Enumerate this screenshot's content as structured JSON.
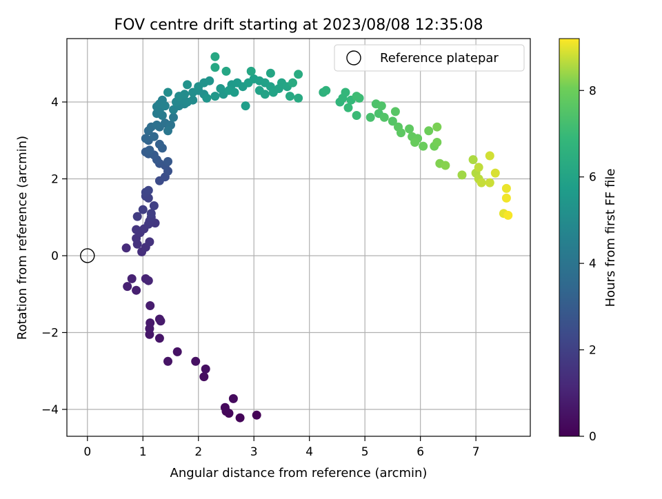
{
  "chart_data": {
    "type": "scatter",
    "title": "FOV centre drift starting at 2023/08/08 12:35:08",
    "xlabel": "Angular distance from reference (arcmin)",
    "ylabel": "Rotation from reference (arcmin)",
    "xlim": [
      -0.37,
      7.98
    ],
    "ylim": [
      -4.7,
      5.65
    ],
    "xticks": [
      0,
      1,
      2,
      3,
      4,
      5,
      6,
      7
    ],
    "xtick_labels": [
      "0",
      "1",
      "2",
      "3",
      "4",
      "5",
      "6",
      "7"
    ],
    "yticks": [
      -4,
      -2,
      0,
      2,
      4
    ],
    "ytick_labels": [
      "−4",
      "−2",
      "0",
      "2",
      "4"
    ],
    "grid": true,
    "colormap": "viridis",
    "legend": {
      "position": "top-right",
      "label": "Reference platepar"
    },
    "reference_point": {
      "x": 0,
      "y": 0
    },
    "colorbar": {
      "label": "Hours from first FF file",
      "range": [
        0,
        9.2
      ],
      "ticks": [
        0,
        2,
        4,
        6,
        8
      ],
      "tick_labels": [
        "0",
        "2",
        "4",
        "6",
        "8"
      ]
    },
    "points": [
      [
        3.05,
        -4.15,
        0.05
      ],
      [
        2.75,
        -4.22,
        0.12
      ],
      [
        2.55,
        -4.1,
        0.18
      ],
      [
        2.5,
        -4.05,
        0.2
      ],
      [
        2.48,
        -3.95,
        0.25
      ],
      [
        2.63,
        -3.72,
        0.3
      ],
      [
        2.1,
        -3.15,
        0.35
      ],
      [
        2.13,
        -2.95,
        0.4
      ],
      [
        1.95,
        -2.75,
        0.45
      ],
      [
        1.62,
        -2.5,
        0.5
      ],
      [
        1.45,
        -2.75,
        0.55
      ],
      [
        1.3,
        -2.15,
        0.6
      ],
      [
        1.12,
        -2.05,
        0.65
      ],
      [
        1.12,
        -1.9,
        0.7
      ],
      [
        1.13,
        -1.75,
        0.72
      ],
      [
        1.3,
        -1.65,
        0.75
      ],
      [
        1.32,
        -1.7,
        0.78
      ],
      [
        1.13,
        -1.3,
        0.82
      ],
      [
        0.88,
        -0.9,
        0.9
      ],
      [
        0.72,
        -0.8,
        0.95
      ],
      [
        0.8,
        -0.6,
        1.0
      ],
      [
        1.05,
        -0.6,
        1.05
      ],
      [
        1.1,
        -0.65,
        1.1
      ],
      [
        0.7,
        0.2,
        1.3
      ],
      [
        0.98,
        0.1,
        1.4
      ],
      [
        1.05,
        0.22,
        1.45
      ],
      [
        0.9,
        0.3,
        1.5
      ],
      [
        1.12,
        0.36,
        1.52
      ],
      [
        0.88,
        0.45,
        1.55
      ],
      [
        0.95,
        0.6,
        1.6
      ],
      [
        0.88,
        0.68,
        1.62
      ],
      [
        1.02,
        0.7,
        1.65
      ],
      [
        1.1,
        0.82,
        1.7
      ],
      [
        1.22,
        0.85,
        1.72
      ],
      [
        1.12,
        0.9,
        1.75
      ],
      [
        1.15,
        1.0,
        1.8
      ],
      [
        0.9,
        1.02,
        1.85
      ],
      [
        1.0,
        1.2,
        1.9
      ],
      [
        1.15,
        1.1,
        1.95
      ],
      [
        1.2,
        1.3,
        2.0
      ],
      [
        1.1,
        1.5,
        2.05
      ],
      [
        1.05,
        1.55,
        2.1
      ],
      [
        1.05,
        1.65,
        2.15
      ],
      [
        1.1,
        1.7,
        2.2
      ],
      [
        1.3,
        1.95,
        2.4
      ],
      [
        1.4,
        2.05,
        2.5
      ],
      [
        1.45,
        2.2,
        2.6
      ],
      [
        1.4,
        2.35,
        2.7
      ],
      [
        1.3,
        2.4,
        2.8
      ],
      [
        1.45,
        2.45,
        2.85
      ],
      [
        1.25,
        2.5,
        2.9
      ],
      [
        1.2,
        2.62,
        2.95
      ],
      [
        1.1,
        2.65,
        3.0
      ],
      [
        1.05,
        2.7,
        3.05
      ],
      [
        1.12,
        2.75,
        3.1
      ],
      [
        1.35,
        2.8,
        3.15
      ],
      [
        1.3,
        2.9,
        3.2
      ],
      [
        1.1,
        3.0,
        3.3
      ],
      [
        1.05,
        3.05,
        3.4
      ],
      [
        1.2,
        3.1,
        3.5
      ],
      [
        1.1,
        3.25,
        3.6
      ],
      [
        1.15,
        3.35,
        3.7
      ],
      [
        1.3,
        3.35,
        3.8
      ],
      [
        1.25,
        3.4,
        3.85
      ],
      [
        1.4,
        3.45,
        3.9
      ],
      [
        1.5,
        3.4,
        4.0
      ],
      [
        1.45,
        3.25,
        4.1
      ],
      [
        1.55,
        3.6,
        4.2
      ],
      [
        1.35,
        3.65,
        4.3
      ],
      [
        1.25,
        3.7,
        4.35
      ],
      [
        1.3,
        3.8,
        4.4
      ],
      [
        1.25,
        3.88,
        4.45
      ],
      [
        1.3,
        3.95,
        4.5
      ],
      [
        1.35,
        4.05,
        4.55
      ],
      [
        1.4,
        3.9,
        4.6
      ],
      [
        1.55,
        3.8,
        4.65
      ],
      [
        1.65,
        3.9,
        4.7
      ],
      [
        1.75,
        3.95,
        4.75
      ],
      [
        1.6,
        4.0,
        4.8
      ],
      [
        1.7,
        4.05,
        4.85
      ],
      [
        1.8,
        4.0,
        4.9
      ],
      [
        1.9,
        4.05,
        4.95
      ],
      [
        1.65,
        4.15,
        5.0
      ],
      [
        1.75,
        4.2,
        5.02
      ],
      [
        1.45,
        4.25,
        5.05
      ],
      [
        1.9,
        4.25,
        5.1
      ],
      [
        2.0,
        4.3,
        5.12
      ],
      [
        2.1,
        4.2,
        5.15
      ],
      [
        2.0,
        4.4,
        5.2
      ],
      [
        1.8,
        4.45,
        5.25
      ],
      [
        2.1,
        4.5,
        5.3
      ],
      [
        2.2,
        4.55,
        5.35
      ],
      [
        2.15,
        4.1,
        5.4
      ],
      [
        2.3,
        4.15,
        5.45
      ],
      [
        2.45,
        4.2,
        5.5
      ],
      [
        2.4,
        4.35,
        5.55
      ],
      [
        2.6,
        4.45,
        5.6
      ],
      [
        2.7,
        4.5,
        5.62
      ],
      [
        2.8,
        4.4,
        5.65
      ],
      [
        2.55,
        4.3,
        5.7
      ],
      [
        2.65,
        4.25,
        5.72
      ],
      [
        2.85,
        3.9,
        5.75
      ],
      [
        2.9,
        4.5,
        5.8
      ],
      [
        3.0,
        4.6,
        5.82
      ],
      [
        3.1,
        4.55,
        5.85
      ],
      [
        3.2,
        4.5,
        5.88
      ],
      [
        3.3,
        4.4,
        5.9
      ],
      [
        3.1,
        4.3,
        5.92
      ],
      [
        3.2,
        4.2,
        5.95
      ],
      [
        3.35,
        4.25,
        5.97
      ],
      [
        3.45,
        4.35,
        6.0
      ],
      [
        3.5,
        4.5,
        6.02
      ],
      [
        3.6,
        4.4,
        6.05
      ],
      [
        3.3,
        4.75,
        6.08
      ],
      [
        2.95,
        4.8,
        6.1
      ],
      [
        2.5,
        4.8,
        6.12
      ],
      [
        2.3,
        4.9,
        6.15
      ],
      [
        2.3,
        5.18,
        6.18
      ],
      [
        3.65,
        4.15,
        6.2
      ],
      [
        3.8,
        4.1,
        6.25
      ],
      [
        3.7,
        4.5,
        6.3
      ],
      [
        3.8,
        4.72,
        6.35
      ],
      [
        4.25,
        4.25,
        6.6
      ],
      [
        4.3,
        4.3,
        6.65
      ],
      [
        4.55,
        4.0,
        6.75
      ],
      [
        4.6,
        4.1,
        6.8
      ],
      [
        4.65,
        4.25,
        6.85
      ],
      [
        4.75,
        4.05,
        6.9
      ],
      [
        4.7,
        3.85,
        6.95
      ],
      [
        4.85,
        3.65,
        7.0
      ],
      [
        4.9,
        4.1,
        7.05
      ],
      [
        4.85,
        4.15,
        7.1
      ],
      [
        5.1,
        3.6,
        7.3
      ],
      [
        5.25,
        3.7,
        7.35
      ],
      [
        5.2,
        3.95,
        7.4
      ],
      [
        5.3,
        3.9,
        7.45
      ],
      [
        5.35,
        3.6,
        7.5
      ],
      [
        5.5,
        3.5,
        7.55
      ],
      [
        5.55,
        3.75,
        7.6
      ],
      [
        5.6,
        3.35,
        7.65
      ],
      [
        5.65,
        3.2,
        7.7
      ],
      [
        5.8,
        3.3,
        7.75
      ],
      [
        5.85,
        3.1,
        7.8
      ],
      [
        5.95,
        3.05,
        7.85
      ],
      [
        5.9,
        2.95,
        7.9
      ],
      [
        6.05,
        2.85,
        7.95
      ],
      [
        6.15,
        3.25,
        8.0
      ],
      [
        6.25,
        2.85,
        8.05
      ],
      [
        6.3,
        2.95,
        8.1
      ],
      [
        6.3,
        3.35,
        8.15
      ],
      [
        6.35,
        2.4,
        8.2
      ],
      [
        6.45,
        2.35,
        8.25
      ],
      [
        6.75,
        2.1,
        8.45
      ],
      [
        6.95,
        2.5,
        8.55
      ],
      [
        7.0,
        2.15,
        8.6
      ],
      [
        7.05,
        2.0,
        8.65
      ],
      [
        7.05,
        2.3,
        8.7
      ],
      [
        7.1,
        1.9,
        8.75
      ],
      [
        7.25,
        1.9,
        8.8
      ],
      [
        7.25,
        2.6,
        8.85
      ],
      [
        7.35,
        2.15,
        8.9
      ],
      [
        7.5,
        1.1,
        9.0
      ],
      [
        7.55,
        1.75,
        9.05
      ],
      [
        7.55,
        1.5,
        9.1
      ],
      [
        7.58,
        1.05,
        9.15
      ]
    ]
  }
}
